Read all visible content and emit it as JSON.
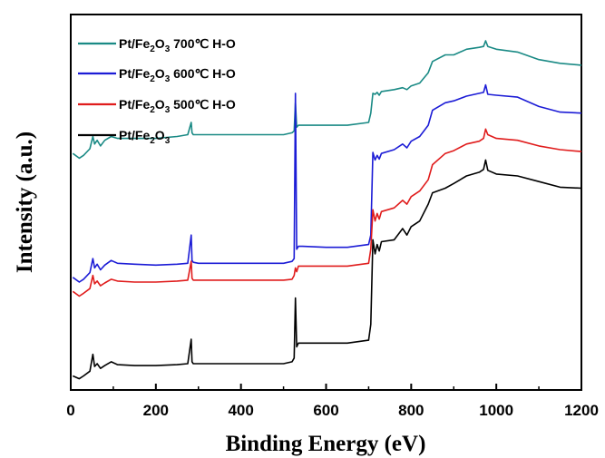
{
  "chart_data": {
    "type": "line",
    "title": "",
    "xlabel": "Binding Energy (eV)",
    "ylabel": "Intensity (a.u.)",
    "xlim": [
      0,
      1200
    ],
    "x_ticks": [
      "0",
      "200",
      "400",
      "600",
      "800",
      "1000",
      "1200"
    ],
    "y_ticks_shown": false,
    "grid": false,
    "legend_position": "top-left",
    "series": [
      {
        "name": "Pt/Fe2O3 700℃ H-O",
        "legend": {
          "pre": "Pt/Fe",
          "sub1": "2",
          "mid": "O",
          "sub2": "3",
          "post": " 700℃ H-O"
        },
        "color": "#1a8a85",
        "x": [
          5,
          20,
          30,
          45,
          52,
          56,
          62,
          70,
          80,
          95,
          110,
          150,
          200,
          250,
          275,
          283,
          285,
          288,
          300,
          350,
          400,
          450,
          500,
          520,
          525,
          528,
          531,
          535,
          545,
          600,
          650,
          700,
          705,
          710,
          715,
          720,
          725,
          730,
          760,
          780,
          790,
          800,
          820,
          840,
          850,
          880,
          900,
          930,
          960,
          970,
          975,
          980,
          1000,
          1050,
          1100,
          1150,
          1200
        ],
        "y": [
          2.42,
          2.37,
          2.4,
          2.47,
          2.6,
          2.52,
          2.56,
          2.5,
          2.56,
          2.6,
          2.58,
          2.58,
          2.58,
          2.6,
          2.62,
          2.75,
          2.64,
          2.62,
          2.62,
          2.62,
          2.62,
          2.62,
          2.62,
          2.64,
          2.66,
          2.96,
          2.7,
          2.72,
          2.72,
          2.72,
          2.72,
          2.75,
          2.85,
          3.06,
          3.05,
          3.07,
          3.04,
          3.08,
          3.1,
          3.12,
          3.1,
          3.14,
          3.17,
          3.28,
          3.4,
          3.47,
          3.47,
          3.53,
          3.55,
          3.56,
          3.62,
          3.56,
          3.53,
          3.5,
          3.42,
          3.38,
          3.36
        ]
      },
      {
        "name": "Pt/Fe2O3 600℃ H-O",
        "legend": {
          "pre": "Pt/Fe",
          "sub1": "2",
          "mid": "O",
          "sub2": "3",
          "post": " 600℃ H-O"
        },
        "color": "#1c1cd6",
        "x": [
          5,
          20,
          30,
          45,
          52,
          56,
          62,
          70,
          80,
          95,
          110,
          150,
          200,
          250,
          275,
          283,
          285,
          288,
          300,
          350,
          400,
          450,
          500,
          520,
          525,
          528,
          531,
          535,
          545,
          600,
          650,
          700,
          705,
          710,
          715,
          720,
          725,
          730,
          760,
          780,
          790,
          800,
          820,
          840,
          850,
          880,
          900,
          930,
          960,
          970,
          975,
          980,
          1000,
          1050,
          1100,
          1150,
          1200
        ],
        "y": [
          1.1,
          1.05,
          1.08,
          1.15,
          1.3,
          1.2,
          1.24,
          1.18,
          1.23,
          1.28,
          1.25,
          1.24,
          1.23,
          1.24,
          1.25,
          1.55,
          1.28,
          1.26,
          1.25,
          1.25,
          1.25,
          1.25,
          1.25,
          1.27,
          1.3,
          3.06,
          1.4,
          1.43,
          1.43,
          1.42,
          1.42,
          1.45,
          1.55,
          2.43,
          2.35,
          2.4,
          2.36,
          2.42,
          2.46,
          2.52,
          2.48,
          2.55,
          2.6,
          2.72,
          2.88,
          2.96,
          2.98,
          3.03,
          3.06,
          3.07,
          3.15,
          3.05,
          3.04,
          3.02,
          2.92,
          2.86,
          2.85
        ]
      },
      {
        "name": "Pt/Fe2O3 500℃ H-O",
        "legend": {
          "pre": "Pt/Fe",
          "sub1": "2",
          "mid": "O",
          "sub2": "3",
          "post": " 500℃ H-O"
        },
        "color": "#e01c1c",
        "x": [
          5,
          20,
          30,
          45,
          52,
          56,
          62,
          70,
          80,
          95,
          110,
          150,
          200,
          250,
          275,
          283,
          285,
          288,
          300,
          350,
          400,
          450,
          500,
          520,
          525,
          528,
          531,
          535,
          545,
          600,
          650,
          700,
          705,
          710,
          715,
          720,
          725,
          730,
          760,
          780,
          790,
          800,
          820,
          840,
          850,
          880,
          900,
          930,
          960,
          970,
          975,
          980,
          1000,
          1050,
          1100,
          1150,
          1200
        ],
        "y": [
          0.95,
          0.9,
          0.93,
          0.98,
          1.12,
          1.03,
          1.06,
          1.01,
          1.04,
          1.08,
          1.06,
          1.05,
          1.05,
          1.06,
          1.07,
          1.27,
          1.09,
          1.07,
          1.07,
          1.07,
          1.07,
          1.07,
          1.07,
          1.08,
          1.12,
          1.2,
          1.16,
          1.22,
          1.22,
          1.22,
          1.22,
          1.25,
          1.4,
          1.82,
          1.7,
          1.78,
          1.72,
          1.8,
          1.84,
          1.92,
          1.88,
          1.96,
          2.02,
          2.14,
          2.3,
          2.42,
          2.45,
          2.52,
          2.55,
          2.58,
          2.68,
          2.62,
          2.58,
          2.56,
          2.5,
          2.46,
          2.44
        ]
      },
      {
        "name": "Pt/Fe2O3",
        "legend": {
          "pre": "Pt/Fe",
          "sub1": "2",
          "mid": "O",
          "sub2": "3",
          "post": ""
        },
        "color": "#000000",
        "x": [
          5,
          20,
          30,
          45,
          52,
          56,
          62,
          70,
          80,
          95,
          110,
          150,
          200,
          250,
          275,
          283,
          285,
          288,
          300,
          350,
          400,
          450,
          500,
          520,
          525,
          528,
          531,
          535,
          545,
          600,
          650,
          700,
          705,
          710,
          715,
          720,
          725,
          730,
          760,
          780,
          790,
          800,
          820,
          840,
          850,
          880,
          900,
          930,
          960,
          970,
          975,
          980,
          1000,
          1050,
          1100,
          1150,
          1200
        ],
        "y": [
          0.05,
          0.02,
          0.05,
          0.1,
          0.28,
          0.15,
          0.18,
          0.13,
          0.16,
          0.2,
          0.17,
          0.16,
          0.16,
          0.17,
          0.18,
          0.44,
          0.2,
          0.18,
          0.18,
          0.18,
          0.18,
          0.18,
          0.18,
          0.2,
          0.24,
          0.88,
          0.36,
          0.4,
          0.4,
          0.4,
          0.4,
          0.43,
          0.6,
          1.5,
          1.35,
          1.45,
          1.38,
          1.48,
          1.5,
          1.62,
          1.55,
          1.64,
          1.7,
          1.88,
          2.0,
          2.05,
          2.1,
          2.18,
          2.22,
          2.25,
          2.35,
          2.24,
          2.2,
          2.18,
          2.12,
          2.06,
          2.05
        ]
      }
    ]
  }
}
